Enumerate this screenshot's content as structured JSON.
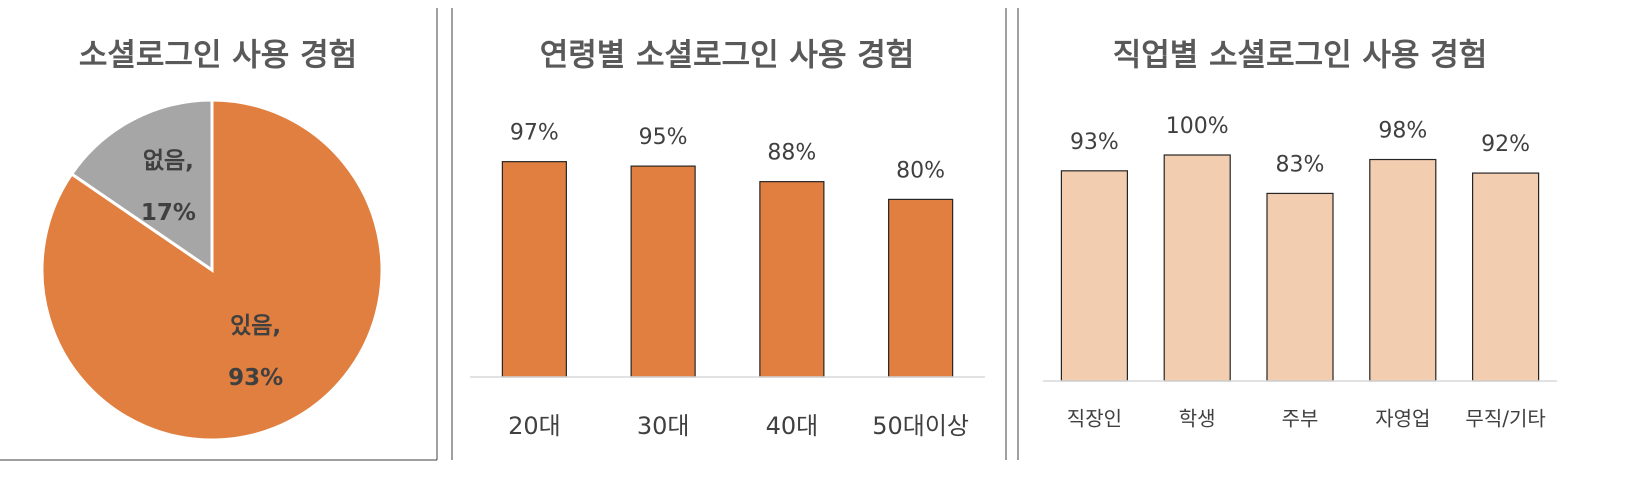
{
  "chart_data": [
    {
      "type": "pie",
      "title": "소셜로그인 사용 경험",
      "categories": [
        "있음,",
        "없음,"
      ],
      "values": [
        93,
        17
      ],
      "value_labels": [
        "93%",
        "17%"
      ],
      "colors": [
        "#e07f3f",
        "#a6a6a6"
      ]
    },
    {
      "type": "bar",
      "title": "연령별 소셜로그인 사용 경험",
      "categories": [
        "20대",
        "30대",
        "40대",
        "50대이상"
      ],
      "values": [
        97,
        95,
        88,
        80
      ],
      "value_labels": [
        "97%",
        "95%",
        "88%",
        "80%"
      ],
      "color": "#e07f3f",
      "ylim": [
        0,
        100
      ]
    },
    {
      "type": "bar",
      "title": "직업별 소셜로그인 사용 경험",
      "categories": [
        "직장인",
        "학생",
        "주부",
        "자영업",
        "무직/기타"
      ],
      "values": [
        93,
        100,
        83,
        98,
        92
      ],
      "value_labels": [
        "93%",
        "100%",
        "83%",
        "98%",
        "92%"
      ],
      "color": "#f2cdb0",
      "ylim": [
        0,
        100
      ]
    }
  ]
}
